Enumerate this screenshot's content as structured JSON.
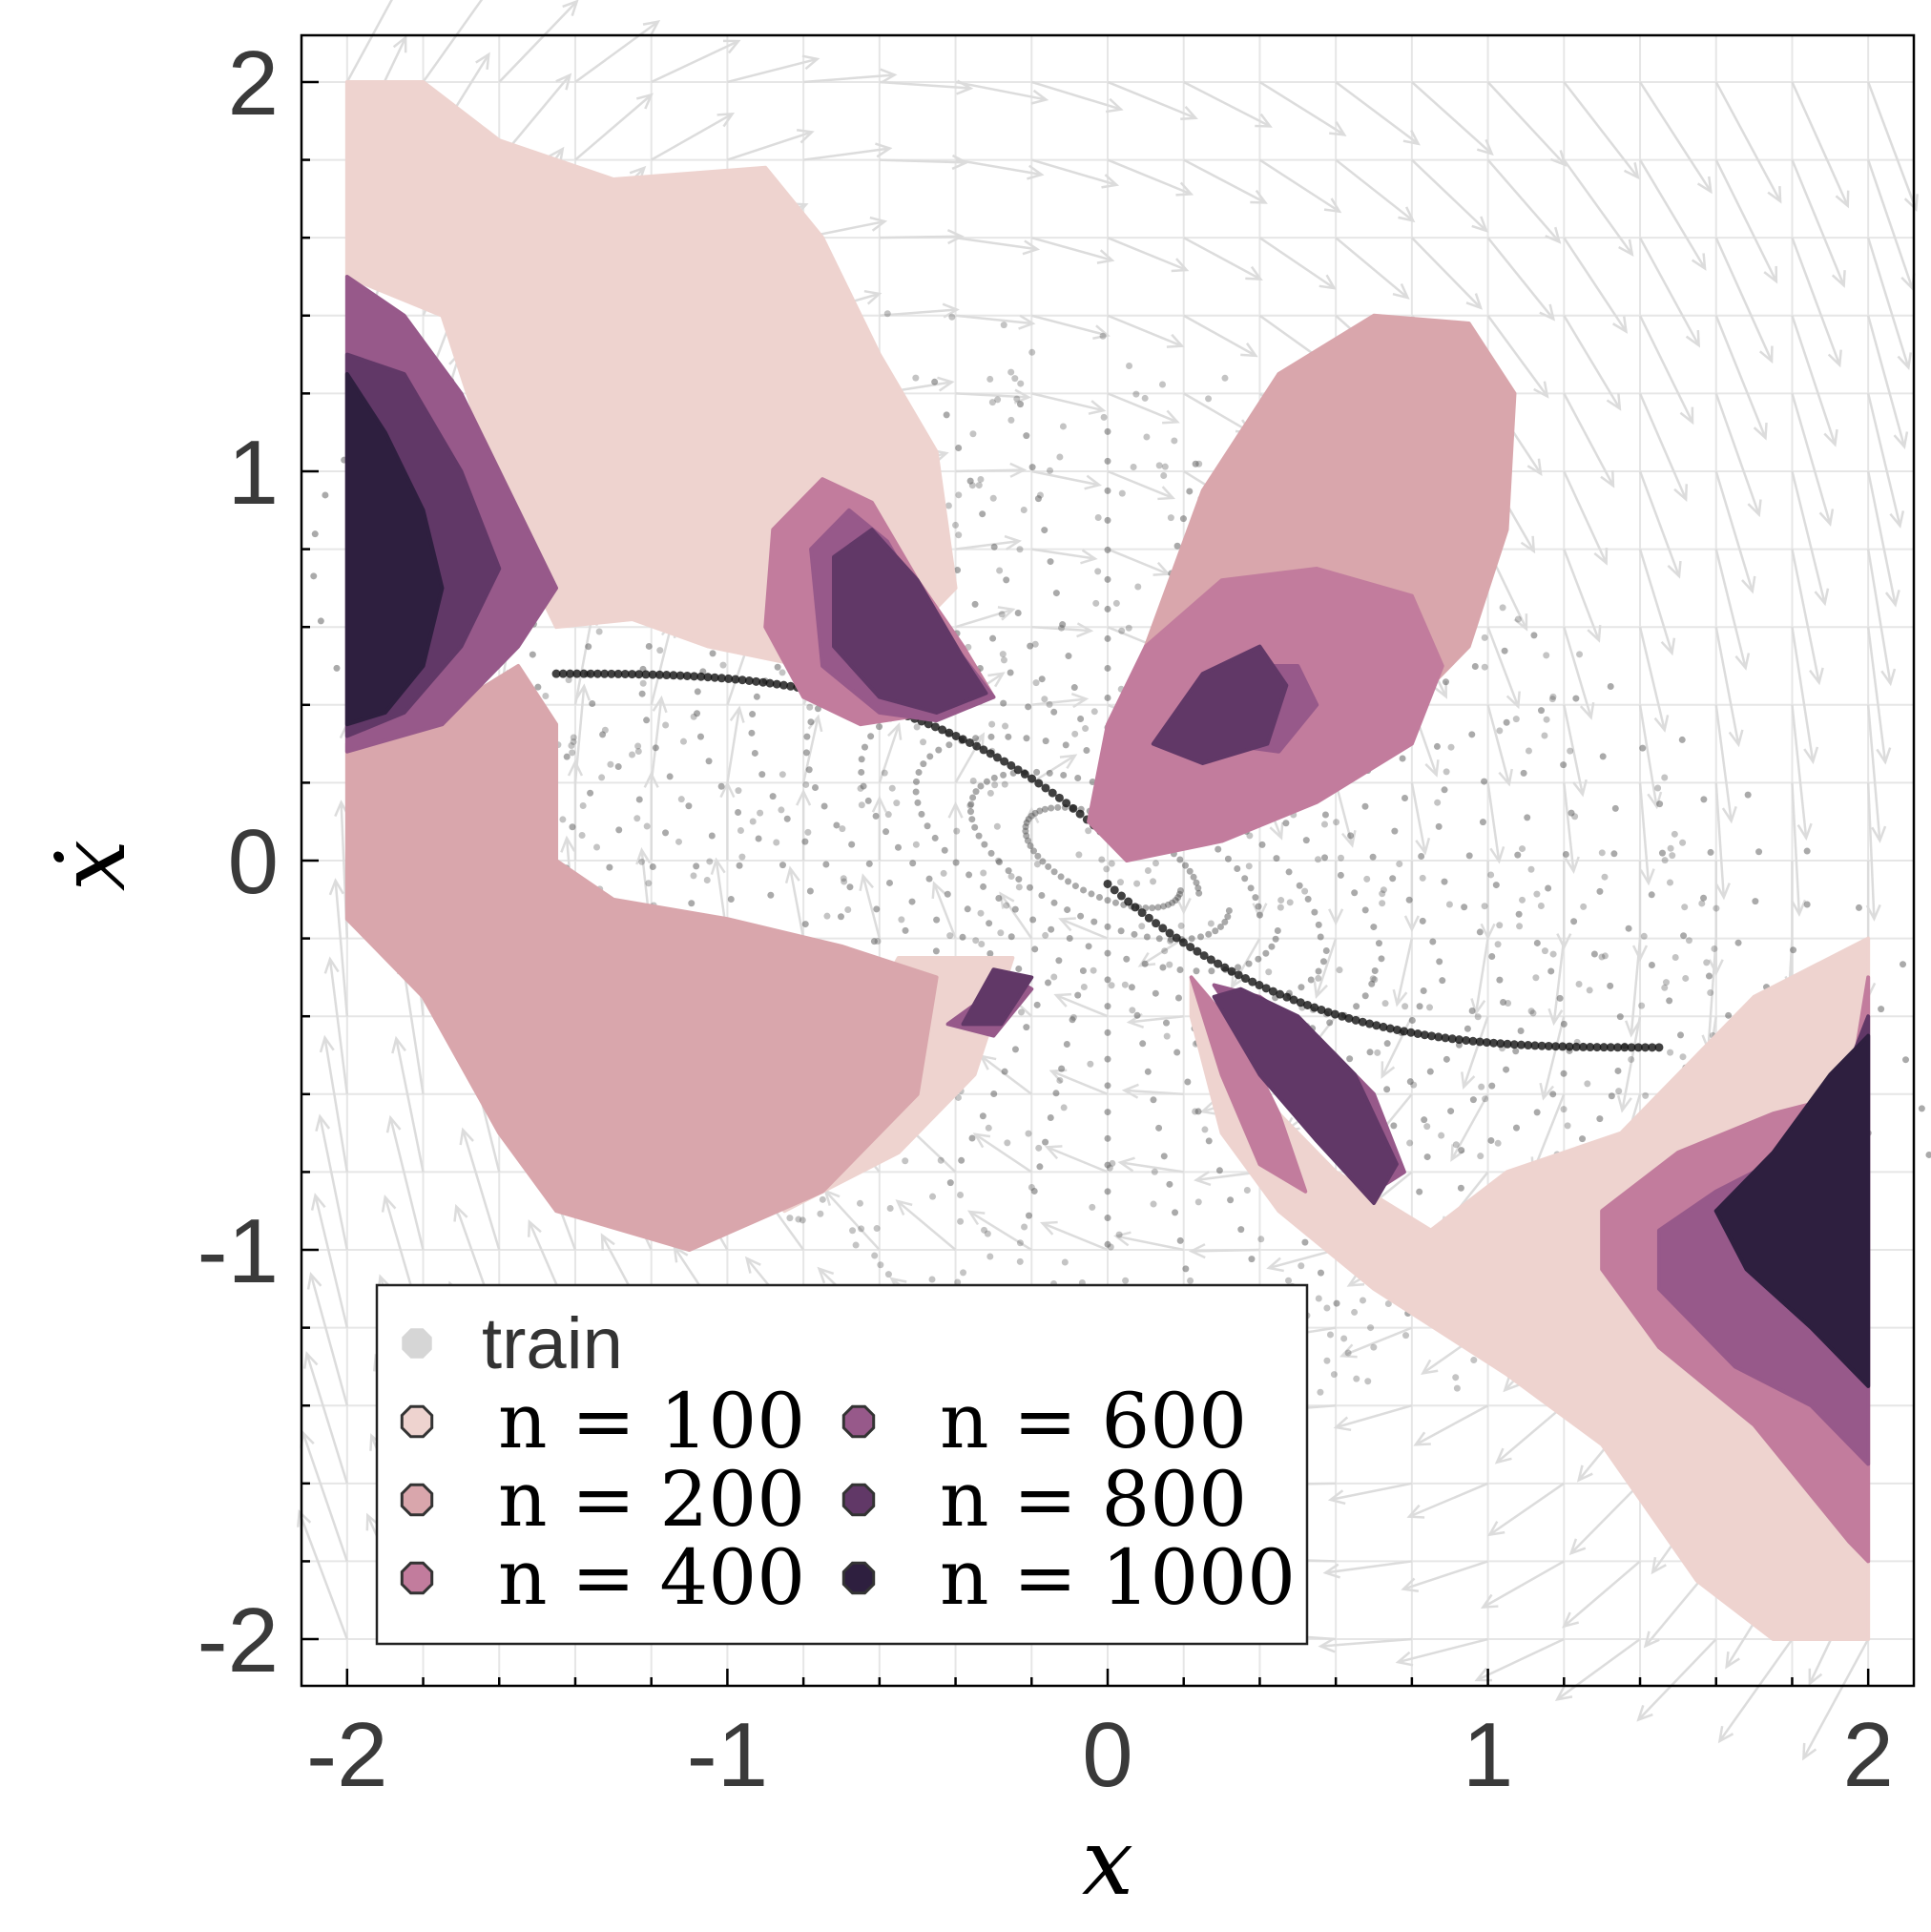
{
  "chart_data": {
    "type": "scatter",
    "title": "",
    "xlabel": "x",
    "ylabel": "ẋ",
    "xlim": [
      -2.12,
      2.12
    ],
    "ylim": [
      -2.12,
      2.12
    ],
    "x_ticks": [
      -2,
      -1,
      0,
      1,
      2
    ],
    "y_ticks": [
      -2,
      -1,
      0,
      1,
      2
    ],
    "x_tick_labels": [
      "-2",
      "-1",
      "0",
      "1",
      "2"
    ],
    "y_tick_labels": [
      "-2",
      "-1",
      "0",
      "1",
      "2"
    ],
    "grid": true,
    "legend_position": "bottom-left",
    "colors": {
      "train": "#555555",
      "n100": "#eed3cf",
      "n200": "#d9a6ac",
      "n400": "#c27c9d",
      "n600": "#97598a",
      "n800": "#613867",
      "n1000": "#2e1f3f",
      "quiver": "#dcdcdc"
    },
    "series": [
      {
        "name": "train",
        "kind": "scatter",
        "description_value": "trajectory samples spiraling to origin"
      },
      {
        "name": "n = 100",
        "kind": "region",
        "color": "n100",
        "polygons": [
          [
            [
              -2.0,
              2.0
            ],
            [
              -1.8,
              2.0
            ],
            [
              -1.6,
              1.85
            ],
            [
              -1.3,
              1.75
            ],
            [
              -0.9,
              1.78
            ],
            [
              -0.75,
              1.6
            ],
            [
              -0.6,
              1.3
            ],
            [
              -0.45,
              1.05
            ],
            [
              -0.4,
              0.7
            ],
            [
              -0.55,
              0.55
            ],
            [
              -0.8,
              0.5
            ],
            [
              -1.05,
              0.55
            ],
            [
              -1.25,
              0.62
            ],
            [
              -1.45,
              0.6
            ],
            [
              -1.55,
              0.8
            ],
            [
              -1.75,
              1.4
            ],
            [
              -2.0,
              1.5
            ]
          ],
          [
            [
              0.22,
              -0.3
            ],
            [
              0.4,
              -0.6
            ],
            [
              0.6,
              -0.8
            ],
            [
              0.85,
              -0.95
            ],
            [
              1.05,
              -0.8
            ],
            [
              1.35,
              -0.7
            ],
            [
              1.7,
              -0.35
            ],
            [
              2.0,
              -0.2
            ],
            [
              2.0,
              -2.0
            ],
            [
              1.75,
              -2.0
            ],
            [
              1.55,
              -1.85
            ],
            [
              1.3,
              -1.5
            ],
            [
              1.05,
              -1.32
            ],
            [
              0.7,
              -1.1
            ],
            [
              0.45,
              -0.9
            ],
            [
              0.3,
              -0.7
            ],
            [
              0.22,
              -0.4
            ]
          ],
          [
            [
              -0.55,
              -0.25
            ],
            [
              -0.25,
              -0.25
            ],
            [
              -0.35,
              -0.55
            ],
            [
              -0.55,
              -0.75
            ],
            [
              -0.85,
              -0.9
            ],
            [
              -0.8,
              -0.7
            ]
          ]
        ]
      },
      {
        "name": "n = 200",
        "kind": "region",
        "color": "n200",
        "polygons": [
          [
            [
              -2.0,
              0.3
            ],
            [
              -1.8,
              0.35
            ],
            [
              -1.55,
              0.5
            ],
            [
              -1.45,
              0.35
            ],
            [
              -1.45,
              0.0
            ],
            [
              -1.3,
              -0.1
            ],
            [
              -1.0,
              -0.15
            ],
            [
              -0.7,
              -0.22
            ],
            [
              -0.45,
              -0.3
            ],
            [
              -0.5,
              -0.6
            ],
            [
              -0.75,
              -0.85
            ],
            [
              -1.1,
              -1.0
            ],
            [
              -1.45,
              -0.9
            ],
            [
              -1.6,
              -0.7
            ],
            [
              -1.8,
              -0.35
            ],
            [
              -2.0,
              -0.15
            ]
          ],
          [
            [
              0.0,
              0.2
            ],
            [
              0.1,
              0.55
            ],
            [
              0.25,
              0.95
            ],
            [
              0.45,
              1.25
            ],
            [
              0.7,
              1.4
            ],
            [
              0.95,
              1.38
            ],
            [
              1.07,
              1.2
            ],
            [
              1.05,
              0.85
            ],
            [
              0.95,
              0.55
            ],
            [
              0.75,
              0.35
            ],
            [
              0.45,
              0.2
            ],
            [
              0.2,
              0.05
            ]
          ]
        ]
      },
      {
        "name": "n = 400",
        "kind": "region",
        "color": "n400",
        "polygons": [
          [
            [
              -0.88,
              0.85
            ],
            [
              -0.75,
              0.98
            ],
            [
              -0.62,
              0.92
            ],
            [
              -0.5,
              0.72
            ],
            [
              -0.38,
              0.55
            ],
            [
              -0.3,
              0.42
            ],
            [
              -0.45,
              0.38
            ],
            [
              -0.65,
              0.35
            ],
            [
              -0.8,
              0.42
            ],
            [
              -0.9,
              0.6
            ]
          ],
          [
            [
              -0.05,
              0.1
            ],
            [
              0.0,
              0.35
            ],
            [
              0.1,
              0.55
            ],
            [
              0.3,
              0.72
            ],
            [
              0.55,
              0.75
            ],
            [
              0.8,
              0.68
            ],
            [
              0.88,
              0.5
            ],
            [
              0.8,
              0.3
            ],
            [
              0.55,
              0.15
            ],
            [
              0.3,
              0.05
            ],
            [
              0.05,
              0.0
            ]
          ],
          [
            [
              0.22,
              -0.3
            ],
            [
              0.3,
              -0.55
            ],
            [
              0.4,
              -0.78
            ],
            [
              0.52,
              -0.85
            ],
            [
              0.45,
              -0.65
            ],
            [
              0.35,
              -0.45
            ]
          ],
          [
            [
              1.3,
              -0.9
            ],
            [
              1.5,
              -0.75
            ],
            [
              1.75,
              -0.65
            ],
            [
              1.95,
              -0.6
            ],
            [
              2.0,
              -0.3
            ],
            [
              2.0,
              -1.8
            ],
            [
              1.95,
              -1.75
            ],
            [
              1.7,
              -1.45
            ],
            [
              1.45,
              -1.25
            ],
            [
              1.3,
              -1.05
            ]
          ]
        ]
      },
      {
        "name": "n = 600",
        "kind": "region",
        "color": "n600",
        "polygons": [
          [
            [
              -2.0,
              1.5
            ],
            [
              -1.85,
              1.4
            ],
            [
              -1.7,
              1.2
            ],
            [
              -1.55,
              0.9
            ],
            [
              -1.45,
              0.7
            ],
            [
              -1.55,
              0.55
            ],
            [
              -1.75,
              0.35
            ],
            [
              -2.0,
              0.28
            ]
          ],
          [
            [
              -0.78,
              0.8
            ],
            [
              -0.68,
              0.9
            ],
            [
              -0.58,
              0.82
            ],
            [
              -0.48,
              0.65
            ],
            [
              -0.3,
              0.42
            ],
            [
              -0.45,
              0.36
            ],
            [
              -0.6,
              0.38
            ],
            [
              -0.75,
              0.5
            ]
          ],
          [
            [
              -0.25,
              -0.3
            ],
            [
              -0.2,
              -0.33
            ],
            [
              -0.3,
              -0.45
            ],
            [
              -0.42,
              -0.42
            ]
          ],
          [
            [
              0.28,
              0.4
            ],
            [
              0.35,
              0.5
            ],
            [
              0.5,
              0.5
            ],
            [
              0.55,
              0.4
            ],
            [
              0.45,
              0.28
            ],
            [
              0.3,
              0.3
            ]
          ],
          [
            [
              0.28,
              -0.32
            ],
            [
              0.4,
              -0.5
            ],
            [
              0.55,
              -0.7
            ],
            [
              0.7,
              -0.85
            ],
            [
              0.78,
              -0.8
            ],
            [
              0.7,
              -0.6
            ],
            [
              0.55,
              -0.45
            ],
            [
              0.4,
              -0.35
            ]
          ],
          [
            [
              1.45,
              -0.95
            ],
            [
              1.6,
              -0.85
            ],
            [
              1.8,
              -0.75
            ],
            [
              2.0,
              -0.45
            ],
            [
              2.0,
              -1.55
            ],
            [
              1.85,
              -1.4
            ],
            [
              1.65,
              -1.3
            ],
            [
              1.45,
              -1.1
            ]
          ]
        ]
      },
      {
        "name": "n = 800",
        "kind": "region",
        "color": "n800",
        "polygons": [
          [
            [
              -2.0,
              1.3
            ],
            [
              -1.85,
              1.25
            ],
            [
              -1.7,
              1.0
            ],
            [
              -1.6,
              0.75
            ],
            [
              -1.7,
              0.55
            ],
            [
              -1.85,
              0.38
            ],
            [
              -2.0,
              0.32
            ]
          ],
          [
            [
              -0.72,
              0.78
            ],
            [
              -0.62,
              0.85
            ],
            [
              -0.5,
              0.72
            ],
            [
              -0.38,
              0.52
            ],
            [
              -0.32,
              0.43
            ],
            [
              -0.45,
              0.38
            ],
            [
              -0.6,
              0.42
            ],
            [
              -0.72,
              0.55
            ]
          ],
          [
            [
              -0.3,
              -0.28
            ],
            [
              -0.2,
              -0.3
            ],
            [
              -0.28,
              -0.42
            ],
            [
              -0.38,
              -0.42
            ]
          ],
          [
            [
              0.12,
              0.3
            ],
            [
              0.25,
              0.48
            ],
            [
              0.4,
              0.55
            ],
            [
              0.47,
              0.45
            ],
            [
              0.42,
              0.3
            ],
            [
              0.25,
              0.25
            ]
          ],
          [
            [
              0.28,
              -0.35
            ],
            [
              0.4,
              -0.55
            ],
            [
              0.55,
              -0.72
            ],
            [
              0.7,
              -0.88
            ],
            [
              0.76,
              -0.78
            ],
            [
              0.65,
              -0.55
            ],
            [
              0.5,
              -0.4
            ],
            [
              0.35,
              -0.33
            ]
          ],
          [
            [
              1.6,
              -0.9
            ],
            [
              1.75,
              -0.78
            ],
            [
              1.9,
              -0.65
            ],
            [
              2.0,
              -0.4
            ],
            [
              2.0,
              -1.35
            ],
            [
              1.85,
              -1.2
            ],
            [
              1.68,
              -1.05
            ]
          ]
        ]
      },
      {
        "name": "n = 1000",
        "kind": "region",
        "color": "n1000",
        "polygons": [
          [
            [
              -2.0,
              1.25
            ],
            [
              -1.9,
              1.1
            ],
            [
              -1.8,
              0.9
            ],
            [
              -1.75,
              0.7
            ],
            [
              -1.8,
              0.5
            ],
            [
              -1.9,
              0.38
            ],
            [
              -2.0,
              0.35
            ]
          ],
          [
            [
              1.6,
              -0.9
            ],
            [
              1.75,
              -0.75
            ],
            [
              1.9,
              -0.55
            ],
            [
              2.0,
              -0.45
            ],
            [
              2.0,
              -1.35
            ],
            [
              1.85,
              -1.2
            ],
            [
              1.68,
              -1.05
            ]
          ]
        ]
      }
    ],
    "legend": [
      {
        "label": "train",
        "style": "sans",
        "color": "train"
      },
      {
        "label": "n = 100",
        "style": "serif",
        "color": "n100"
      },
      {
        "label": "n = 200",
        "style": "serif",
        "color": "n200"
      },
      {
        "label": "n = 400",
        "style": "serif",
        "color": "n400"
      },
      {
        "label": "n = 600",
        "style": "serif",
        "color": "n600"
      },
      {
        "label": "n = 800",
        "style": "serif",
        "color": "n800"
      },
      {
        "label": "n = 1000",
        "style": "serif",
        "color": "n1000"
      }
    ]
  }
}
